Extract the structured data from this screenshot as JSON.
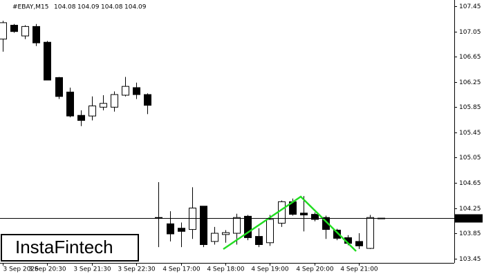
{
  "chart_data": {
    "type": "candlestick",
    "symbol": "#EBAY,M15",
    "header_ohlc": [
      104.08,
      104.09,
      104.08,
      104.09
    ],
    "categories": [
      "3 Sep 2026",
      null,
      null,
      null,
      "3 Sep 20:30",
      null,
      null,
      null,
      "3 Sep 21:30",
      null,
      null,
      null,
      "3 Sep 22:30",
      null,
      null,
      null,
      "4 Sep 17:00",
      null,
      null,
      null,
      "4 Sep 18:00",
      null,
      null,
      null,
      "4 Sep 19:00",
      null,
      null,
      null,
      "4 Sep 20:00",
      null,
      null,
      null,
      "4 Sep 21:00",
      null,
      null
    ],
    "open": [
      106.93,
      107.15,
      106.98,
      107.13,
      106.88,
      106.32,
      106.09,
      105.72,
      105.71,
      105.85,
      105.85,
      106.04,
      106.16,
      106.05,
      104.1,
      104.0,
      103.93,
      103.91,
      104.28,
      103.72,
      103.83,
      103.85,
      104.12,
      103.8,
      103.7,
      104.01,
      104.35,
      104.17,
      104.15,
      104.1,
      103.9,
      103.78,
      103.72,
      103.61,
      104.08
    ],
    "high": [
      107.22,
      107.17,
      107.15,
      107.17,
      106.9,
      106.33,
      106.16,
      105.8,
      106.02,
      106.04,
      106.1,
      106.33,
      106.24,
      106.07,
      104.66,
      104.2,
      104.02,
      104.58,
      104.28,
      103.95,
      103.9,
      104.16,
      104.14,
      103.93,
      104.14,
      104.37,
      104.4,
      104.44,
      104.18,
      104.13,
      103.92,
      103.82,
      103.85,
      104.14,
      104.09
    ],
    "low": [
      106.73,
      107.03,
      106.93,
      106.82,
      106.28,
      105.98,
      105.69,
      105.55,
      105.64,
      105.8,
      105.78,
      106.02,
      105.98,
      105.74,
      103.63,
      103.72,
      103.63,
      103.76,
      103.63,
      103.67,
      103.7,
      103.67,
      103.74,
      103.63,
      103.65,
      103.95,
      104.13,
      103.88,
      104.04,
      103.76,
      103.74,
      103.66,
      103.6,
      103.6,
      104.08
    ],
    "close": [
      107.19,
      107.05,
      107.13,
      106.87,
      106.28,
      106.02,
      105.71,
      105.64,
      105.87,
      105.91,
      106.05,
      106.18,
      106.05,
      105.88,
      104.09,
      103.84,
      103.88,
      104.25,
      103.67,
      103.85,
      103.86,
      104.1,
      103.78,
      103.67,
      104.07,
      104.35,
      104.15,
      104.14,
      104.07,
      103.91,
      103.77,
      103.69,
      103.65,
      104.1,
      104.09
    ],
    "last_price": 104.09,
    "ylim": [
      103.38,
      107.55
    ],
    "yticks": [
      103.45,
      103.85,
      104.25,
      104.65,
      105.05,
      105.45,
      105.85,
      106.25,
      106.65,
      107.05,
      107.45
    ],
    "logo": "InstaFintech"
  }
}
